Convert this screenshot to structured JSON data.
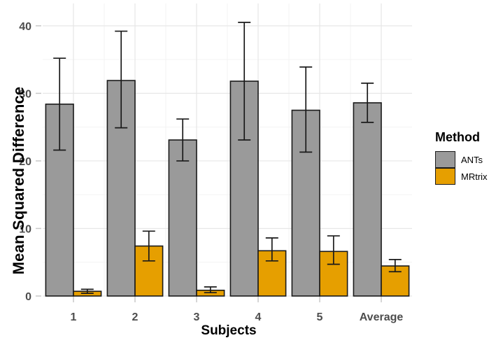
{
  "figure": {
    "background": "#FFFFFF"
  },
  "chart_data": {
    "type": "bar",
    "title": "",
    "xlabel": "Subjects",
    "ylabel": "Mean Squared Difference",
    "categories": [
      "1",
      "2",
      "3",
      "4",
      "5",
      "Average"
    ],
    "series": [
      {
        "name": "ANTs",
        "color": "#9A9A9A",
        "values": [
          28.4,
          31.9,
          23.1,
          31.8,
          27.5,
          28.6
        ],
        "err_low": [
          21.6,
          24.9,
          20.0,
          23.1,
          21.3,
          25.7
        ],
        "err_high": [
          35.2,
          39.2,
          26.2,
          40.5,
          33.9,
          31.5
        ]
      },
      {
        "name": "MRtrix",
        "color": "#E69F00",
        "values": [
          0.7,
          7.4,
          0.85,
          6.7,
          6.6,
          4.45
        ],
        "err_low": [
          0.4,
          5.2,
          0.5,
          5.2,
          4.7,
          3.6
        ],
        "err_high": [
          1.0,
          9.6,
          1.35,
          8.6,
          8.9,
          5.4
        ]
      }
    ],
    "ylim": [
      0,
      43.3
    ],
    "y_ticks": [
      0,
      10,
      20,
      30,
      40
    ],
    "y_minor_gridlines": [
      5,
      15,
      25,
      35
    ],
    "grid": "on",
    "legend_title": "Method",
    "legend_position": "right",
    "colors": {
      "grid_major": "#E7E7E7",
      "grid_minor": "#F3F3F3",
      "bar_border": "#1A1A1A",
      "tick": "#C9C9C9",
      "tick_label": "#4D4D4D",
      "axis_title": "#000000"
    }
  }
}
